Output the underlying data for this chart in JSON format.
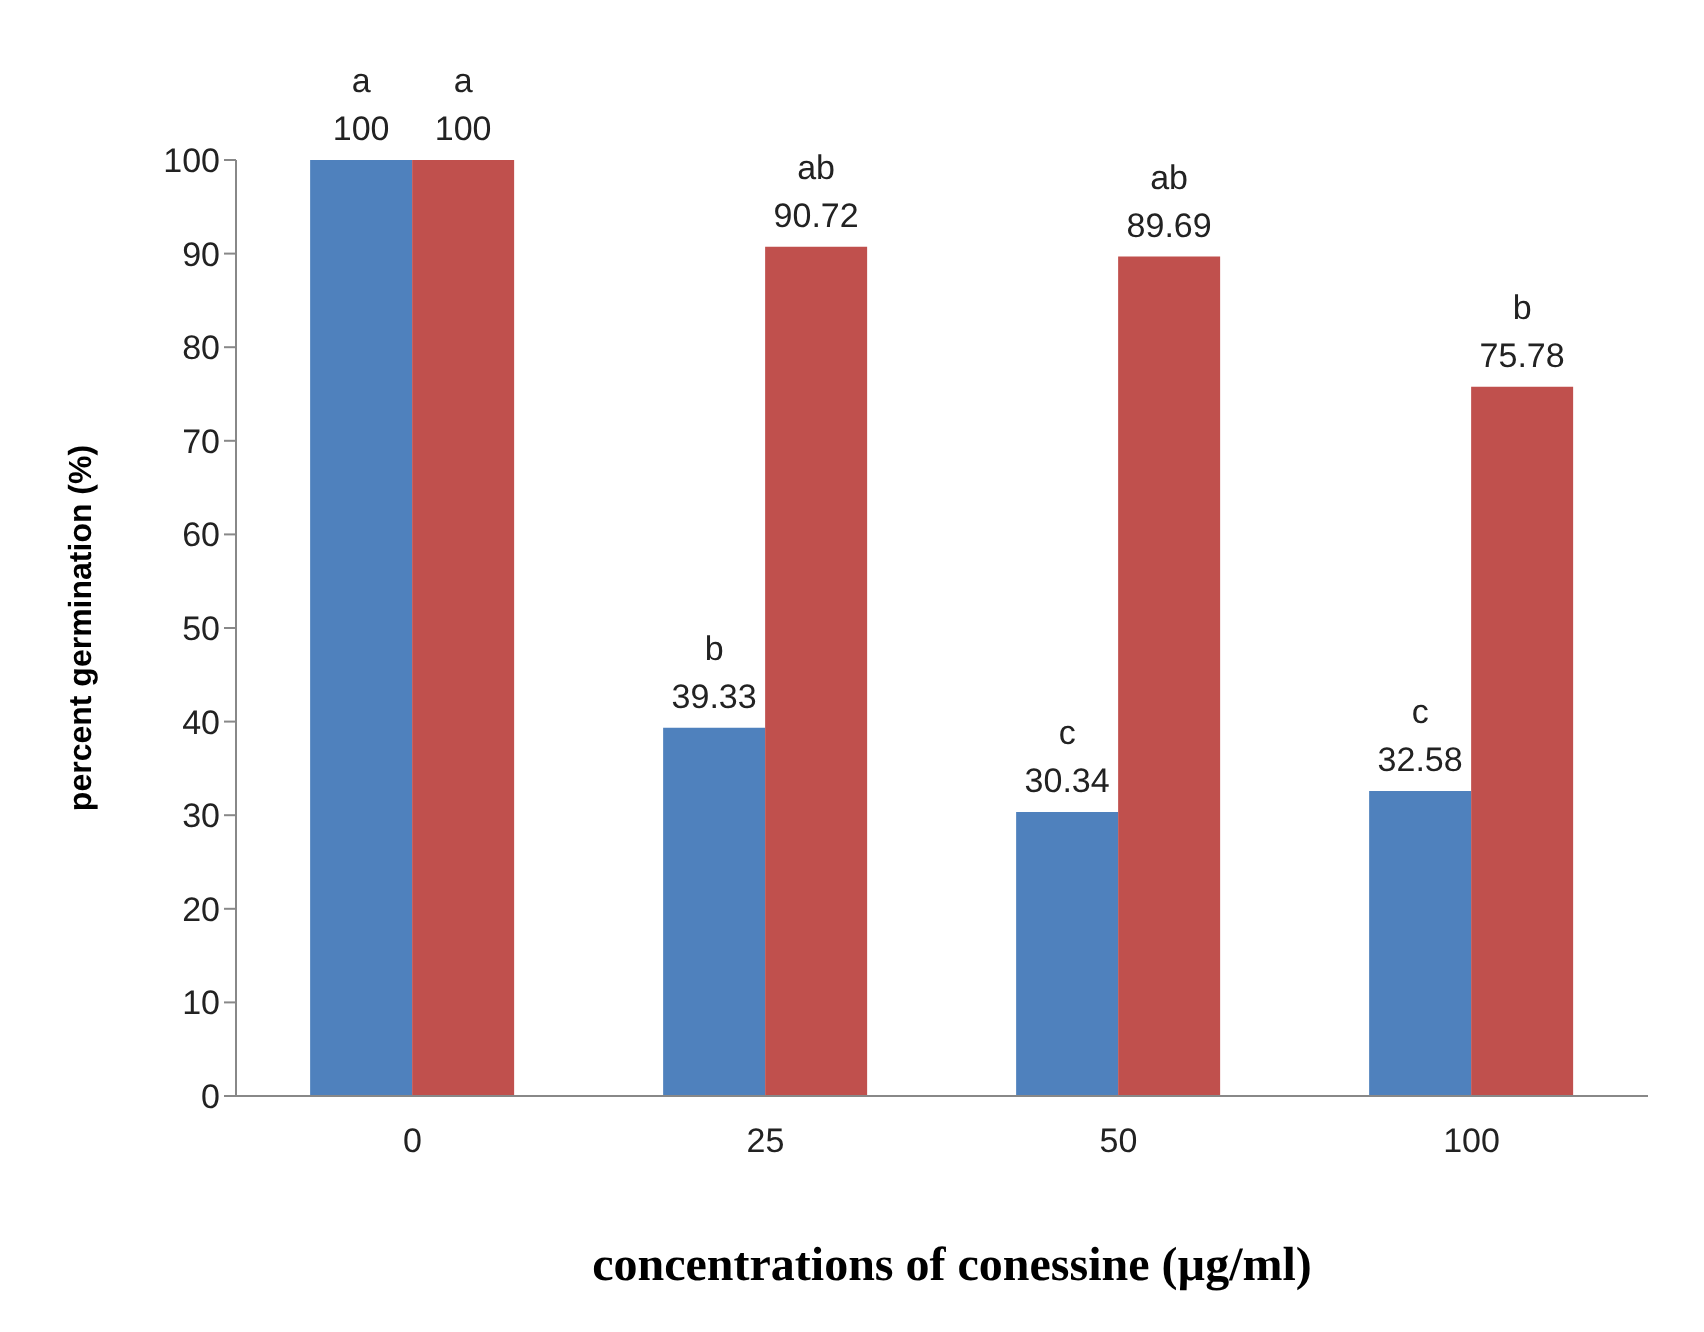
{
  "chart_data": {
    "type": "bar",
    "categories": [
      "0",
      "25",
      "50",
      "100"
    ],
    "series": [
      {
        "color": "#4f81bd",
        "values": [
          100,
          39.33,
          30.34,
          32.58
        ],
        "value_labels": [
          "a\n100",
          "b\n39.33",
          "c\n30.34",
          "c\n32.58"
        ]
      },
      {
        "color": "#c0504d",
        "values": [
          100,
          90.72,
          89.69,
          75.78
        ],
        "value_labels": [
          "a\n100",
          "ab\n90.72",
          "ab\n89.69",
          "b\n75.78"
        ]
      }
    ],
    "ylabel": "percent   germination  (%)",
    "xlabel": "concentrations of conessine (µg/ml)",
    "ylim": [
      0,
      100
    ],
    "yticks": [
      0,
      10,
      20,
      30,
      40,
      50,
      60,
      70,
      80,
      90,
      100
    ],
    "grid": false,
    "legend": false
  }
}
